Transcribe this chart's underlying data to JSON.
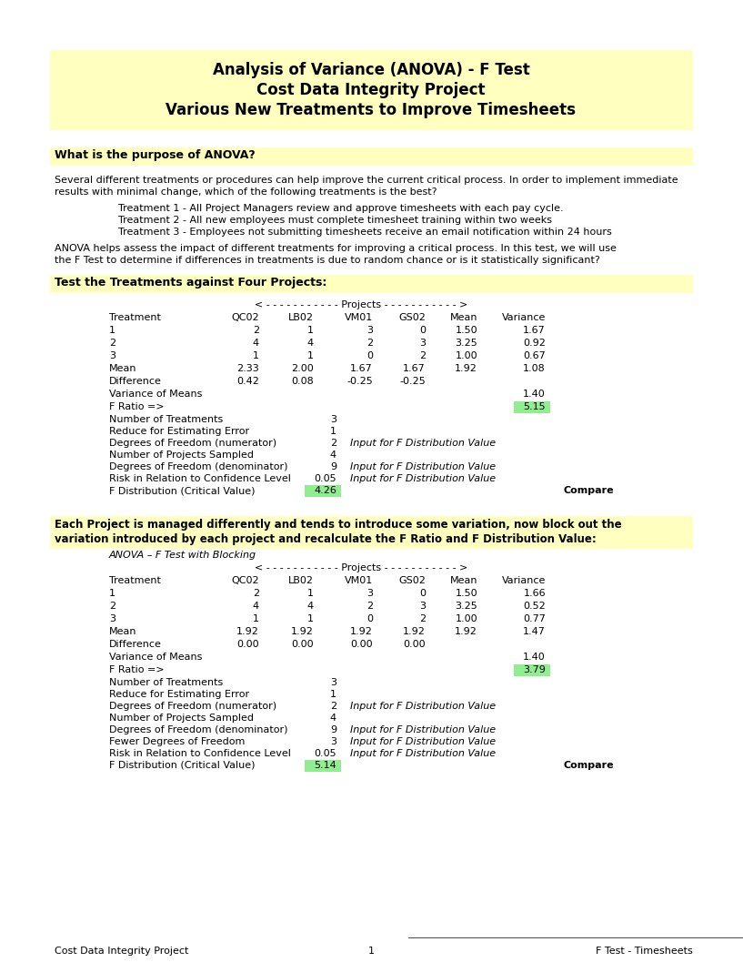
{
  "title_lines": [
    "Analysis of Variance (ANOVA) - F Test",
    "Cost Data Integrity Project",
    "Various New Treatments to Improve Timesheets"
  ],
  "title_bg": "#FFFFC0",
  "section_bg": "#FFFFC0",
  "green_bg": "#90EE90",
  "purpose_label": "What is the purpose of ANOVA?",
  "body_text1_lines": [
    "Several different treatments or procedures can help improve the current critical process. In order to implement immediate",
    "results with minimal change, which of the following treatments is the best?"
  ],
  "treatments": [
    "Treatment 1 - All Project Managers review and approve timesheets with each pay cycle.",
    "Treatment 2 - All new employees must complete timesheet training within two weeks",
    "Treatment 3 - Employees not submitting timesheets receive an email notification within 24 hours"
  ],
  "body_text2_lines": [
    "ANOVA helps assess the impact of different treatments for improving a critical process. In this test, we will use",
    "the F Test to determine if differences in treatments is due to random chance or is it statistically significant?"
  ],
  "section1_label": "Test the Treatments against Four Projects:",
  "projects_header": "< - - - - - - - - - - - Projects - - - - - - - - - - - >",
  "col_headers": [
    "Treatment",
    "QC02",
    "LB02",
    "VM01",
    "GS02",
    "Mean",
    "Variance"
  ],
  "t1_row": [
    "1",
    "2",
    "1",
    "3",
    "0",
    "1.50",
    "1.67"
  ],
  "t2_row": [
    "2",
    "4",
    "4",
    "2",
    "3",
    "3.25",
    "0.92"
  ],
  "t3_row": [
    "3",
    "1",
    "1",
    "0",
    "2",
    "1.00",
    "0.67"
  ],
  "mean_row": [
    "Mean",
    "2.33",
    "2.00",
    "1.67",
    "1.67",
    "1.92",
    "1.08"
  ],
  "diff_row": [
    "Difference",
    "0.42",
    "0.08",
    "-0.25",
    "-0.25",
    "",
    ""
  ],
  "var_means_label": "Variance of Means",
  "var_means_val": "1.40",
  "f_ratio_label": "F Ratio =>",
  "f_ratio_val1": "5.15",
  "stats1": [
    [
      "Number of Treatments",
      "3",
      ""
    ],
    [
      "Reduce for Estimating Error",
      "1",
      ""
    ],
    [
      "Degrees of Freedom (numerator)",
      "2",
      "Input for F Distribution Value"
    ],
    [
      "Number of Projects Sampled",
      "4",
      ""
    ],
    [
      "Degrees of Freedom (denominator)",
      "9",
      "Input for F Distribution Value"
    ],
    [
      "Risk in Relation to Confidence Level",
      "0.05",
      "Input for F Distribution Value"
    ],
    [
      "F Distribution (Critical Value)",
      "4.26",
      "Compare"
    ]
  ],
  "section2_lines": [
    "Each Project is managed differently and tends to introduce some variation, now block out the",
    "variation introduced by each project and recalculate the F Ratio and F Distribution Value:"
  ],
  "section2_subtitle": "ANOVA – F Test with Blocking",
  "t1_row2": [
    "1",
    "2",
    "1",
    "3",
    "0",
    "1.50",
    "1.66"
  ],
  "t2_row2": [
    "2",
    "4",
    "4",
    "2",
    "3",
    "3.25",
    "0.52"
  ],
  "t3_row2": [
    "3",
    "1",
    "1",
    "0",
    "2",
    "1.00",
    "0.77"
  ],
  "mean_row2": [
    "Mean",
    "1.92",
    "1.92",
    "1.92",
    "1.92",
    "1.92",
    "1.47"
  ],
  "diff_row2": [
    "Difference",
    "0.00",
    "0.00",
    "0.00",
    "0.00",
    "",
    ""
  ],
  "var_means_val2": "1.40",
  "f_ratio_val2": "3.79",
  "stats2": [
    [
      "Number of Treatments",
      "3",
      ""
    ],
    [
      "Reduce for Estimating Error",
      "1",
      ""
    ],
    [
      "Degrees of Freedom (numerator)",
      "2",
      "Input for F Distribution Value"
    ],
    [
      "Number of Projects Sampled",
      "4",
      ""
    ],
    [
      "Degrees of Freedom (denominator)",
      "9",
      "Input for F Distribution Value"
    ],
    [
      "Fewer Degrees of Freedom",
      "3",
      "Input for F Distribution Value"
    ],
    [
      "Risk in Relation to Confidence Level",
      "0.05",
      "Input for F Distribution Value"
    ],
    [
      "F Distribution (Critical Value)",
      "5.14",
      "Compare"
    ]
  ],
  "footer_left": "Cost Data Integrity Project",
  "footer_center": "1",
  "footer_right": "F Test - Timesheets"
}
